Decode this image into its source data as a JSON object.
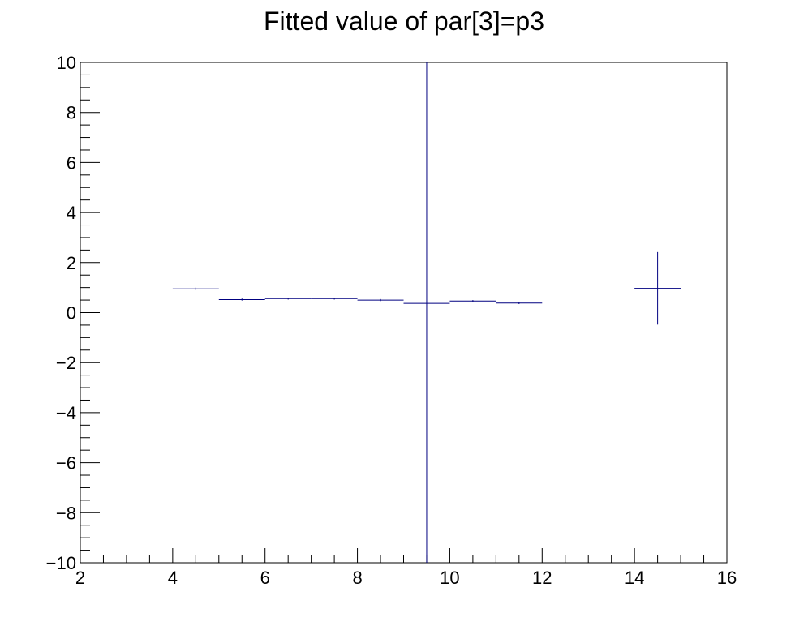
{
  "chart_data": {
    "type": "scatter",
    "title": "Fitted value of par[3]=p3",
    "xlabel": "",
    "ylabel": "",
    "xlim": [
      2,
      16
    ],
    "ylim": [
      -10,
      10
    ],
    "x_ticks": [
      2,
      4,
      6,
      8,
      10,
      12,
      14,
      16
    ],
    "x_tick_labels": [
      "2",
      "4",
      "6",
      "8",
      "10",
      "12",
      "14",
      "16"
    ],
    "y_ticks": [
      -10,
      -8,
      -6,
      -4,
      -2,
      0,
      2,
      4,
      6,
      8,
      10
    ],
    "y_tick_labels": [
      "−10",
      "−8",
      "−6",
      "−4",
      "−2",
      "0",
      "2",
      "4",
      "6",
      "8",
      "10"
    ],
    "x_minor_step": 0.5,
    "y_minor_step": 0.5,
    "grid": false,
    "series": [
      {
        "name": "p3",
        "color": "#000080",
        "points": [
          {
            "x": 4.5,
            "xerr": 0.5,
            "y": 0.95,
            "yerr": 0.05
          },
          {
            "x": 5.5,
            "xerr": 0.5,
            "y": 0.52,
            "yerr": 0.04
          },
          {
            "x": 6.5,
            "xerr": 0.5,
            "y": 0.56,
            "yerr": 0.04
          },
          {
            "x": 7.5,
            "xerr": 0.5,
            "y": 0.56,
            "yerr": 0.04
          },
          {
            "x": 8.5,
            "xerr": 0.5,
            "y": 0.5,
            "yerr": 0.04
          },
          {
            "x": 9.5,
            "xerr": 0.5,
            "y": 0.37,
            "yerr": 12.0
          },
          {
            "x": 10.5,
            "xerr": 0.5,
            "y": 0.46,
            "yerr": 0.04
          },
          {
            "x": 11.5,
            "xerr": 0.5,
            "y": 0.38,
            "yerr": 0.04
          },
          {
            "x": 14.5,
            "xerr": 0.5,
            "y": 0.97,
            "yerr": 1.45
          }
        ]
      }
    ]
  }
}
